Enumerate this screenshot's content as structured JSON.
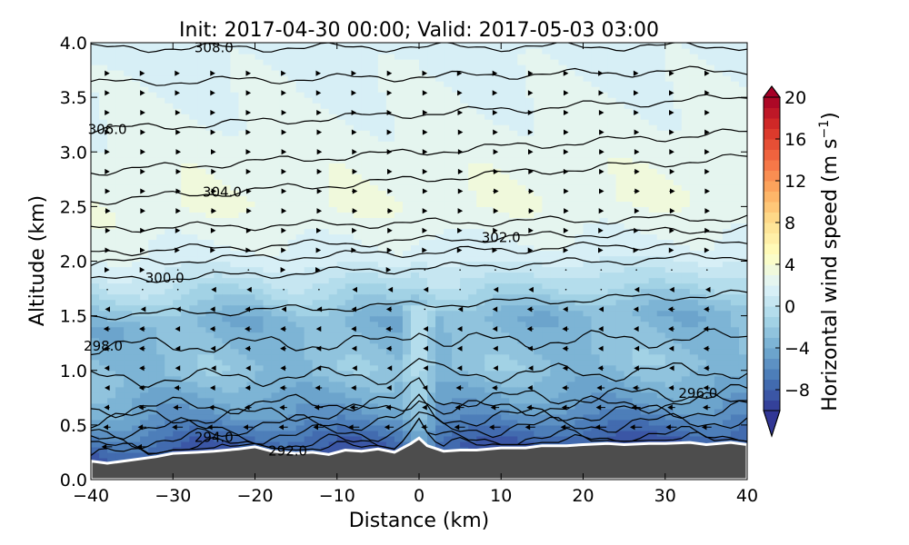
{
  "chart_data": {
    "type": "heatmap",
    "title": "Init: 2017-04-30 00:00; Valid: 2017-05-03 03:00",
    "xlabel": "Distance (km)",
    "ylabel": "Altitude (km)",
    "xlim": [
      -40,
      40
    ],
    "ylim": [
      0,
      4
    ],
    "xticks": [
      -40,
      -30,
      -20,
      -10,
      0,
      10,
      20,
      30,
      40
    ],
    "yticks": [
      0.0,
      0.5,
      1.0,
      1.5,
      2.0,
      2.5,
      3.0,
      3.5,
      4.0
    ],
    "grid": false,
    "colorbar": {
      "label": "Horizontal wind speed (m s",
      "label_superscript": "−1",
      "label_close": ")",
      "range": [
        -10,
        20
      ],
      "step": 1,
      "ticks": [
        -8,
        -4,
        0,
        4,
        8,
        12,
        16,
        20
      ],
      "extend": "both",
      "colormap": "RdYlBu_r"
    },
    "wind_speed_field": {
      "description_levels": [
        {
          "altitude_km": 0.3,
          "value": -8
        },
        {
          "altitude_km": 0.6,
          "value": -5
        },
        {
          "altitude_km": 1.0,
          "value": -2.5
        },
        {
          "altitude_km": 1.45,
          "value": -3.5
        },
        {
          "altitude_km": 1.7,
          "value": -1
        },
        {
          "altitude_km": 2.0,
          "value": 1.5
        },
        {
          "altitude_km": 2.5,
          "value": 3
        },
        {
          "altitude_km": 3.0,
          "value": 2.5
        },
        {
          "altitude_km": 3.5,
          "value": 2
        },
        {
          "altitude_km": 4.0,
          "value": 1.5
        }
      ]
    },
    "terrain": {
      "x": [
        -40,
        -38,
        -35,
        -32,
        -30,
        -27,
        -25,
        -22,
        -20,
        -18,
        -15,
        -13,
        -11,
        -9,
        -7,
        -5,
        -3,
        -1,
        0,
        1,
        3,
        5,
        7,
        10,
        13,
        15,
        18,
        20,
        23,
        25,
        28,
        30,
        33,
        35,
        38,
        40
      ],
      "y": [
        0.17,
        0.15,
        0.18,
        0.21,
        0.24,
        0.25,
        0.26,
        0.28,
        0.3,
        0.26,
        0.24,
        0.25,
        0.23,
        0.27,
        0.26,
        0.28,
        0.25,
        0.33,
        0.38,
        0.31,
        0.26,
        0.27,
        0.27,
        0.29,
        0.29,
        0.31,
        0.31,
        0.32,
        0.33,
        0.32,
        0.33,
        0.33,
        0.34,
        0.32,
        0.34,
        0.32
      ]
    },
    "theta_contours": [
      {
        "level": 292.0,
        "label": "292.0",
        "y_left": 0.22,
        "y_right": 0.36
      },
      {
        "level": 294.0,
        "label": "294.0",
        "y_left": 0.35,
        "y_right": 0.55
      },
      {
        "level": 296.0,
        "label": "296.0",
        "y_left": 0.65,
        "y_right": 0.8
      },
      {
        "level": 298.0,
        "label": "298.0",
        "y_left": 1.22,
        "y_right": 1.3
      },
      {
        "level": 300.0,
        "label": "300.0",
        "y_left": 1.82,
        "y_right": 2.05
      },
      {
        "level": 302.0,
        "label": "302.0",
        "y_left": 2.08,
        "y_right": 2.3
      },
      {
        "level": 304.0,
        "label": "304.0",
        "y_left": 2.55,
        "y_right": 2.95
      },
      {
        "level": 306.0,
        "label": "306.0",
        "y_left": 3.2,
        "y_right": 3.5
      },
      {
        "level": 308.0,
        "label": "308.0",
        "y_left": 3.95,
        "y_right": 3.97
      }
    ],
    "theta_unlabeled": [
      {
        "y_left": 0.28,
        "y_right": 0.42
      },
      {
        "y_left": 0.45,
        "y_right": 0.65
      },
      {
        "y_left": 0.55,
        "y_right": 0.72
      },
      {
        "y_left": 0.92,
        "y_right": 1.0
      },
      {
        "y_left": 1.5,
        "y_right": 1.7
      },
      {
        "y_left": 1.98,
        "y_right": 2.18
      },
      {
        "y_left": 2.3,
        "y_right": 2.4
      },
      {
        "y_left": 2.82,
        "y_right": 3.18
      },
      {
        "y_left": 3.63,
        "y_right": 3.75
      }
    ]
  }
}
